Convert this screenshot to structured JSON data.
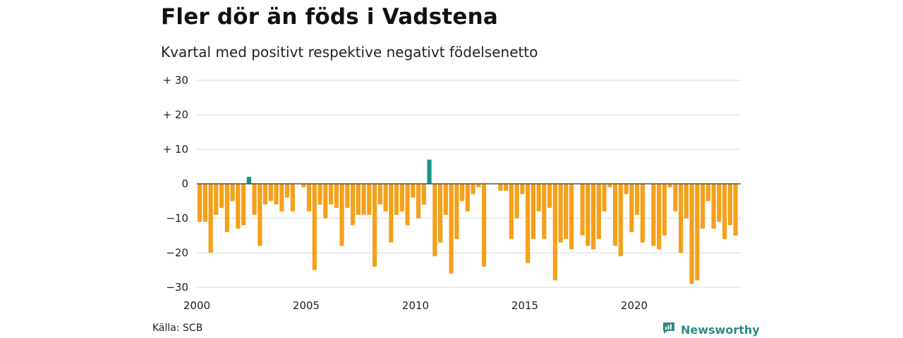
{
  "header": {
    "title": "Fler dör än föds i Vadstena",
    "subtitle": "Kvartal med positivt respektive negativt födelsenetto"
  },
  "footer": {
    "source": "Källa: SCB",
    "brand": "Newsworthy",
    "brand_icon": "newsworthy-chat-chart-icon"
  },
  "colors": {
    "positive": "#1a9387",
    "negative": "#f5a01a",
    "grid": "#d9d9d9",
    "zero_line": "#333333",
    "brand": "#2a8c87"
  },
  "chart_data": {
    "type": "bar",
    "title": "Fler dör än föds i Vadstena",
    "subtitle": "Kvartal med positivt respektive negativt födelsenetto",
    "x_ticks": [
      "2000",
      "2005",
      "2010",
      "2015",
      "2020"
    ],
    "y_ticks": [
      {
        "value": 30,
        "label": "+ 30"
      },
      {
        "value": 20,
        "label": "+ 20"
      },
      {
        "value": 10,
        "label": "+ 10"
      },
      {
        "value": 0,
        "label": "0"
      },
      {
        "value": -10,
        "label": "−10"
      },
      {
        "value": -20,
        "label": "−20"
      },
      {
        "value": -30,
        "label": "−30"
      }
    ],
    "ylim": [
      -30,
      30
    ],
    "x_start": "2000 Q1",
    "grid": true,
    "values": [
      -11,
      -11,
      -20,
      -9,
      -7,
      -14,
      -5,
      -13,
      -12,
      2,
      -9,
      -18,
      -6,
      -5,
      -6,
      -8,
      -4,
      -8,
      0,
      -1,
      -8,
      -25,
      -6,
      -10,
      -6,
      -7,
      -18,
      -7,
      -12,
      -9,
      -9,
      -9,
      -24,
      -6,
      -8,
      -17,
      -9,
      -8,
      -12,
      -4,
      -10,
      -6,
      7,
      -21,
      -17,
      -9,
      -26,
      -16,
      -5,
      -8,
      -3,
      -1,
      -24,
      0,
      0,
      -2,
      -2,
      -16,
      -10,
      -3,
      -23,
      -16,
      -8,
      -16,
      -7,
      -28,
      -17,
      -16,
      -19,
      0,
      -15,
      -18,
      -19,
      -16,
      -8,
      -1,
      -18,
      -21,
      -3,
      -14,
      -9,
      -17,
      0,
      -18,
      -19,
      -15,
      -1,
      -8,
      -20,
      -10,
      -29,
      -28,
      -13,
      -5,
      -13,
      -11,
      -16,
      -12,
      -15
    ]
  }
}
